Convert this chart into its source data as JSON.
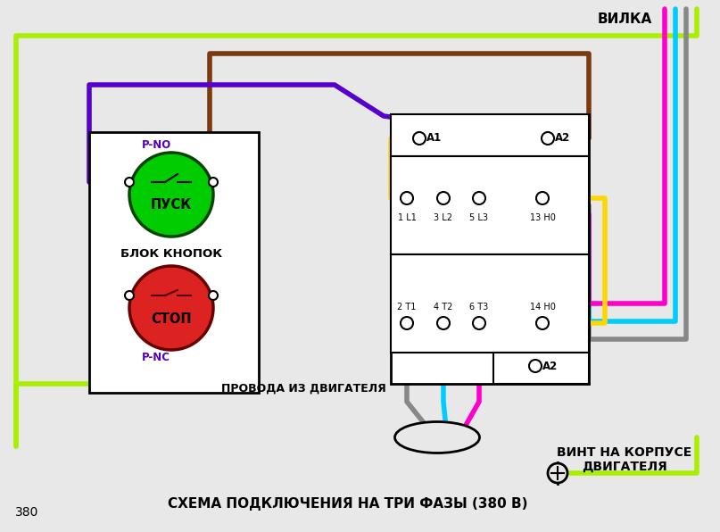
{
  "bg_color": "#e8e8e8",
  "title_bottom": "СХЕМА ПОДКЛЮЧЕНИЯ НА ТРИ ФАЗЫ (380 В)",
  "label_vilka": "ВИЛКА",
  "label_vint": "ВИНТ НА КОРПУСЕ\nДВИГАТЕЛЯ",
  "label_provoda": "ПРОВОДА ИЗ ДВИГАТЕЛЯ",
  "label_blok": "БЛОК КНОПОК",
  "label_pno": "P-NO",
  "label_pnc": "P-NC",
  "label_pusk": "ПУСК",
  "label_stop": "СТОП",
  "label_a1": "A1",
  "label_a2": "A2",
  "l_labels": [
    "1 L1",
    "3 L2",
    "5 L3",
    "13 H0"
  ],
  "t_labels": [
    "2 T1",
    "4 T2",
    "6 T3",
    "14 H0"
  ],
  "num_bottom": "380",
  "wire_lw": 4.0,
  "colors": {
    "brown": "#7B3A10",
    "purple": "#5500CC",
    "yellow": "#FFD700",
    "gray": "#888888",
    "cyan": "#00CCFF",
    "magenta": "#FF00CC",
    "green_yellow": "#AAEE00",
    "black": "#111111",
    "blue": "#2255FF",
    "green": "#00CC00",
    "red": "#DD2222",
    "dark_gray": "#333333"
  }
}
